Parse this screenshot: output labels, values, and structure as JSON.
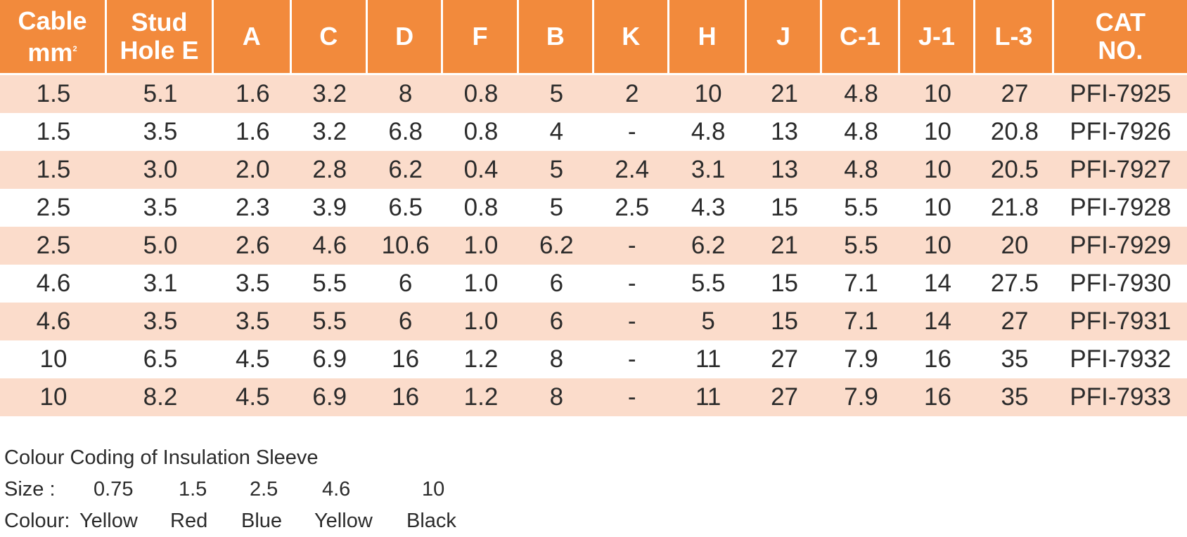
{
  "table": {
    "headers": [
      [
        "Cable",
        "mm"
      ],
      [
        "Stud",
        "Hole E"
      ],
      [
        "A"
      ],
      [
        "C"
      ],
      [
        "D"
      ],
      [
        "F"
      ],
      [
        "B"
      ],
      [
        "K"
      ],
      [
        "H"
      ],
      [
        "J"
      ],
      [
        "C-1"
      ],
      [
        "J-1"
      ],
      [
        "L-3"
      ],
      [
        "CAT",
        "NO."
      ]
    ],
    "cable_unit_superscript": "2",
    "rows": [
      [
        "1.5",
        "5.1",
        "1.6",
        "3.2",
        "8",
        "0.8",
        "5",
        "2",
        "10",
        "21",
        "4.8",
        "10",
        "27",
        "PFI-7925"
      ],
      [
        "1.5",
        "3.5",
        "1.6",
        "3.2",
        "6.8",
        "0.8",
        "4",
        "-",
        "4.8",
        "13",
        "4.8",
        "10",
        "20.8",
        "PFI-7926"
      ],
      [
        "1.5",
        "3.0",
        "2.0",
        "2.8",
        "6.2",
        "0.4",
        "5",
        "2.4",
        "3.1",
        "13",
        "4.8",
        "10",
        "20.5",
        "PFI-7927"
      ],
      [
        "2.5",
        "3.5",
        "2.3",
        "3.9",
        "6.5",
        "0.8",
        "5",
        "2.5",
        "4.3",
        "15",
        "5.5",
        "10",
        "21.8",
        "PFI-7928"
      ],
      [
        "2.5",
        "5.0",
        "2.6",
        "4.6",
        "10.6",
        "1.0",
        "6.2",
        "-",
        "6.2",
        "21",
        "5.5",
        "10",
        "20",
        "PFI-7929"
      ],
      [
        "4.6",
        "3.1",
        "3.5",
        "5.5",
        "6",
        "1.0",
        "6",
        "-",
        "5.5",
        "15",
        "7.1",
        "14",
        "27.5",
        "PFI-7930"
      ],
      [
        "4.6",
        "3.5",
        "3.5",
        "5.5",
        "6",
        "1.0",
        "6",
        "-",
        "5",
        "15",
        "7.1",
        "14",
        "27",
        "PFI-7931"
      ],
      [
        "10",
        "6.5",
        "4.5",
        "6.9",
        "16",
        "1.2",
        "8",
        "-",
        "11",
        "27",
        "7.9",
        "16",
        "35",
        "PFI-7932"
      ],
      [
        "10",
        "8.2",
        "4.5",
        "6.9",
        "16",
        "1.2",
        "8",
        "-",
        "11",
        "27",
        "7.9",
        "16",
        "35",
        "PFI-7933"
      ]
    ]
  },
  "legend": {
    "title": "Colour Coding of Insulation Sleeve",
    "size_label": "Size :",
    "sizes": [
      "0.75",
      "1.5",
      "2.5",
      "4.6",
      "10"
    ],
    "colour_label": "Colour:",
    "colours": [
      "Yellow",
      "Red",
      "Blue",
      "Yellow",
      "Black"
    ]
  },
  "colors": {
    "header_bg": "#f28a3c",
    "row_shaded_bg": "#fbdccb",
    "text": "#2b2b2b"
  }
}
